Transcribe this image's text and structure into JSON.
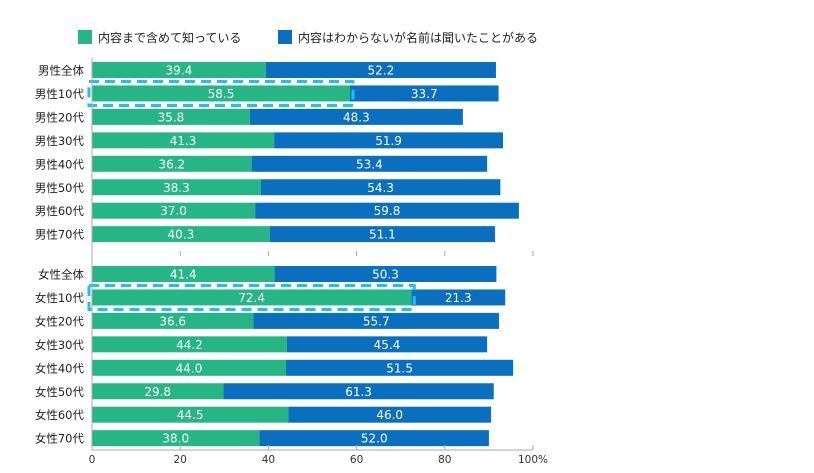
{
  "chart_data": {
    "type": "bar",
    "orientation": "horizontal",
    "stacked": true,
    "legend_placement": "top",
    "colors": {
      "known_content": "#26b584",
      "name_only": "#0a6fbe",
      "highlight": "#1ec2f0"
    },
    "series_names": [
      "内容まで含めて知っている",
      "内容はわからないが名前は聞いたことがある"
    ],
    "groups": [
      {
        "categories": [
          "男性全体",
          "男性10代",
          "男性20代",
          "男性30代",
          "男性40代",
          "男性50代",
          "男性60代",
          "男性70代"
        ],
        "series": [
          {
            "name": "内容まで含めて知っている",
            "values": [
              39.4,
              58.5,
              35.8,
              41.3,
              36.2,
              38.3,
              37.0,
              40.3
            ]
          },
          {
            "name": "内容はわからないが名前は聞いたことがある",
            "values": [
              52.2,
              33.7,
              48.3,
              51.9,
              53.4,
              54.3,
              59.8,
              51.1
            ]
          }
        ],
        "highlighted": "男性10代"
      },
      {
        "categories": [
          "女性全体",
          "女性10代",
          "女性20代",
          "女性30代",
          "女性40代",
          "女性50代",
          "女性60代",
          "女性70代"
        ],
        "series": [
          {
            "name": "内容まで含めて知っている",
            "values": [
              41.4,
              72.4,
              36.6,
              44.2,
              44.0,
              29.8,
              44.5,
              38.0
            ]
          },
          {
            "name": "内容はわからないが名前は聞いたことがある",
            "values": [
              50.3,
              21.3,
              55.7,
              45.4,
              51.5,
              61.3,
              46.0,
              52.0
            ]
          }
        ],
        "highlighted": "女性10代"
      }
    ],
    "xlim": [
      0,
      100
    ],
    "xticks": [
      "0",
      "20",
      "40",
      "60",
      "80",
      "100%"
    ],
    "grid": false
  }
}
